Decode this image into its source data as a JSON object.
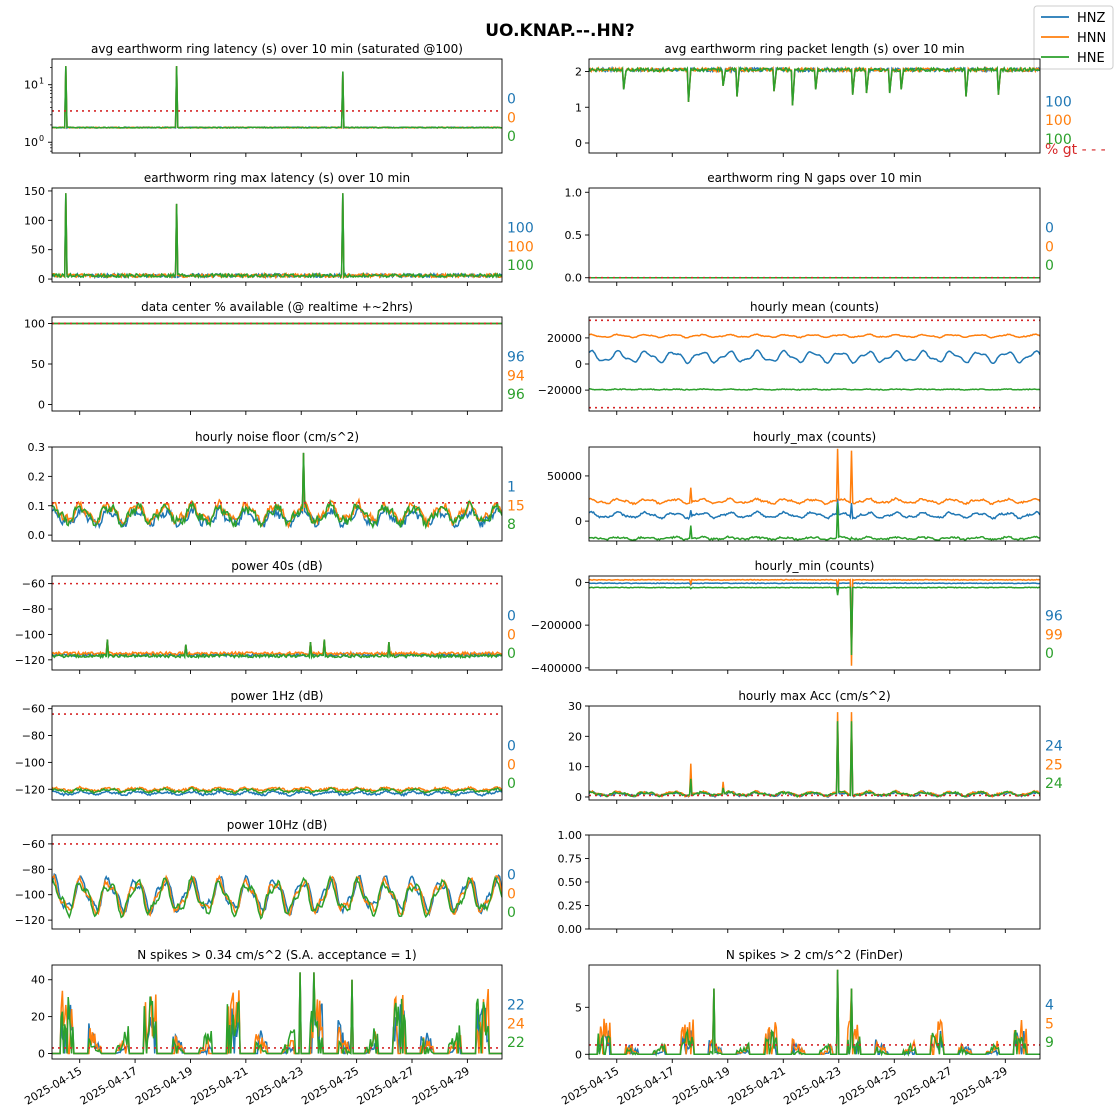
{
  "figure": {
    "title": "UO.KNAP.--.HN?",
    "colors": {
      "HNZ": "#1f77b4",
      "HNN": "#ff7f0e",
      "HNE": "#2ca02c",
      "threshold": "#d62728"
    },
    "legend": {
      "placement": "top-right",
      "entries": [
        "HNZ",
        "HNN",
        "HNE"
      ]
    },
    "x_tick_labels": [
      "2025-04-15",
      "2025-04-17",
      "2025-04-19",
      "2025-04-21",
      "2025-04-23",
      "2025-04-25",
      "2025-04-27",
      "2025-04-29"
    ],
    "x_range": [
      "2025-04-14T00:00",
      "2025-04-30T06:00"
    ]
  },
  "chart_data": [
    {
      "id": "p0",
      "type": "line",
      "title": "avg earthworm ring latency (s)   over 10 min (saturated @100)",
      "yscale": "log",
      "ylim": [
        0.65,
        28
      ],
      "yticks": [
        1,
        10
      ],
      "ytick_labels": [
        "10^0",
        "10^1"
      ],
      "threshold": 3.5,
      "baseline": {
        "HNZ": 1.8,
        "HNN": 1.8,
        "HNE": 1.8
      },
      "spikes": [
        {
          "x": "2025-04-14T12:00",
          "y": 21
        },
        {
          "x": "2025-04-18T12:00",
          "y": 21
        },
        {
          "x": "2025-04-24T12:00",
          "y": 17
        }
      ],
      "noise": 0.08,
      "percent": {
        "HNZ": "0",
        "HNN": "0",
        "HNE": "0"
      }
    },
    {
      "id": "p1",
      "type": "line",
      "title": "avg earthworm ring packet length (s)   over 10 min",
      "ylim": [
        -0.28,
        2.35
      ],
      "yticks": [
        0,
        1,
        2
      ],
      "ytick_labels": [
        "0",
        "1",
        "2"
      ],
      "baseline": {
        "HNZ": 2.05,
        "HNN": 2.05,
        "HNE": 2.05
      },
      "noise": 0.05,
      "dips": [
        {
          "x": "2025-04-15T06:00",
          "y": 1.5
        },
        {
          "x": "2025-04-17T14:00",
          "y": 1.15
        },
        {
          "x": "2025-04-18T20:00",
          "y": 1.6
        },
        {
          "x": "2025-04-19T08:00",
          "y": 1.3
        },
        {
          "x": "2025-04-20T16:00",
          "y": 1.45
        },
        {
          "x": "2025-04-21T08:00",
          "y": 1.05
        },
        {
          "x": "2025-04-22T04:00",
          "y": 1.5
        },
        {
          "x": "2025-04-23T12:00",
          "y": 1.35
        },
        {
          "x": "2025-04-24T00:00",
          "y": 1.4
        },
        {
          "x": "2025-04-24T20:00",
          "y": 1.4
        },
        {
          "x": "2025-04-25T06:00",
          "y": 1.5
        },
        {
          "x": "2025-04-27T14:00",
          "y": 1.3
        },
        {
          "x": "2025-04-28T18:00",
          "y": 1.35
        }
      ],
      "percent": {
        "HNZ": "100",
        "HNN": "100",
        "HNE": "100"
      },
      "note": "% gt - - -"
    },
    {
      "id": "p2",
      "type": "line",
      "title": "earthworm ring max latency (s)   over 10 min",
      "ylim": [
        -5,
        155
      ],
      "yticks": [
        0,
        50,
        100,
        150
      ],
      "ytick_labels": [
        "0",
        "50",
        "100",
        "150"
      ],
      "baseline": {
        "HNZ": 6,
        "HNN": 6,
        "HNE": 6
      },
      "noise": 3,
      "spikes": [
        {
          "x": "2025-04-14T12:00",
          "y": 146
        },
        {
          "x": "2025-04-18T12:00",
          "y": 128
        },
        {
          "x": "2025-04-24T12:00",
          "y": 146
        }
      ],
      "percent": {
        "HNZ": "100",
        "HNN": "100",
        "HNE": "100"
      }
    },
    {
      "id": "p3",
      "type": "line",
      "title": "earthworm ring N gaps   over 10 min",
      "ylim": [
        -0.05,
        1.05
      ],
      "yticks": [
        0,
        0.5,
        1
      ],
      "ytick_labels": [
        "0.0",
        "0.5",
        "1.0"
      ],
      "baseline": {
        "HNZ": 0,
        "HNN": 0,
        "HNE": 0
      },
      "noise": 0,
      "threshold": 0,
      "percent": {
        "HNZ": "0",
        "HNN": "0",
        "HNE": "0"
      }
    },
    {
      "id": "p4",
      "type": "line",
      "title": "data center % available (@ realtime +~2hrs)",
      "ylim": [
        -8,
        108
      ],
      "yticks": [
        0,
        50,
        100
      ],
      "ytick_labels": [
        "0",
        "50",
        "100"
      ],
      "baseline": {
        "HNZ": 100,
        "HNN": 100,
        "HNE": 100
      },
      "noise": 0,
      "threshold": 100,
      "percent": {
        "HNZ": "96",
        "HNN": "94",
        "HNE": "96"
      }
    },
    {
      "id": "p5",
      "type": "line",
      "title": "hourly mean (counts)",
      "ylim": [
        -36000,
        36000
      ],
      "yticks": [
        -20000,
        0,
        20000
      ],
      "ytick_labels": [
        "−20000",
        "0",
        "20000"
      ],
      "thresholds": [
        33500,
        -33500
      ],
      "baseline": {
        "HNZ": 5500,
        "HNN": 21500,
        "HNE": -19500
      },
      "daily_amp": {
        "HNZ": 3500,
        "HNN": 900,
        "HNE": 200
      },
      "noise": 300,
      "percent": {
        "HNZ": "",
        "HNN": "",
        "HNE": ""
      }
    },
    {
      "id": "p6",
      "type": "line",
      "title": "hourly noise floor (cm/s^2)",
      "ylim": [
        -0.02,
        0.3
      ],
      "yticks": [
        0,
        0.1,
        0.2,
        0.3
      ],
      "ytick_labels": [
        "0.0",
        "0.1",
        "0.2",
        "0.3"
      ],
      "threshold": 0.11,
      "baseline": {
        "HNZ": 0.06,
        "HNN": 0.075,
        "HNE": 0.07
      },
      "daily_amp": {
        "HNZ": 0.02,
        "HNN": 0.025,
        "HNE": 0.025
      },
      "noise": 0.012,
      "spikes": [
        {
          "x": "2025-04-23T02:00",
          "y": 0.28
        }
      ],
      "percent": {
        "HNZ": "1",
        "HNN": "15",
        "HNE": "8"
      }
    },
    {
      "id": "p7",
      "type": "line",
      "title": "hourly_max (counts)",
      "ylim": [
        -22000,
        82000
      ],
      "yticks": [
        0,
        50000
      ],
      "ytick_labels": [
        "0",
        "50000"
      ],
      "baseline": {
        "HNZ": 6500,
        "HNN": 22000,
        "HNE": -19000
      },
      "daily_amp": {
        "HNZ": 2500,
        "HNN": 2000,
        "HNE": 1200
      },
      "noise": 900,
      "spikes": [
        {
          "x": "2025-04-17T16:00",
          "y": {
            "HNZ": 12000,
            "HNN": 37000,
            "HNE": -5000
          }
        },
        {
          "x": "2025-04-22T23:00",
          "y": {
            "HNZ": 25000,
            "HNN": 80000,
            "HNE": 20000
          }
        },
        {
          "x": "2025-04-23T11:00",
          "y": {
            "HNZ": 20000,
            "HNN": 78000,
            "HNE": -18000
          }
        }
      ],
      "percent": {
        "HNZ": "",
        "HNN": "",
        "HNE": ""
      }
    },
    {
      "id": "p8",
      "type": "line",
      "title": "power 40s (dB)",
      "ylim": [
        -128,
        -54
      ],
      "yticks": [
        -120,
        -100,
        -80,
        -60
      ],
      "ytick_labels": [
        "−120",
        "−100",
        "−80",
        "−60"
      ],
      "threshold": -60,
      "baseline": {
        "HNZ": -116,
        "HNN": -115,
        "HNE": -117
      },
      "noise": 1.2,
      "spikes": [
        {
          "x": "2025-04-16T00:00",
          "y": -104
        },
        {
          "x": "2025-04-18T20:00",
          "y": -108
        },
        {
          "x": "2025-04-23T20:00",
          "y": -104
        },
        {
          "x": "2025-04-26T04:00",
          "y": -106
        },
        {
          "x": "2025-04-23T08:00",
          "y": -106
        }
      ],
      "percent": {
        "HNZ": "0",
        "HNN": "0",
        "HNE": "0"
      }
    },
    {
      "id": "p9",
      "type": "line",
      "title": "hourly_min (counts)",
      "ylim": [
        -410000,
        30000
      ],
      "yticks": [
        -400000,
        -200000,
        0
      ],
      "ytick_labels": [
        "−400000",
        "−200000",
        "0"
      ],
      "baseline": {
        "HNZ": -4000,
        "HNN": 12000,
        "HNE": -24000
      },
      "noise": 1500,
      "spikes": [
        {
          "x": "2025-04-17T16:00",
          "y": {
            "HNZ": -12000,
            "HNN": -6000,
            "HNE": -30000
          }
        },
        {
          "x": "2025-04-22T23:00",
          "y": {
            "HNZ": -30000,
            "HNN": -20000,
            "HNE": -60000
          }
        },
        {
          "x": "2025-04-23T11:00",
          "y": {
            "HNZ": -330000,
            "HNN": -390000,
            "HNE": -340000
          }
        }
      ],
      "percent": {
        "HNZ": "96",
        "HNN": "99",
        "HNE": "0"
      }
    },
    {
      "id": "p10",
      "type": "line",
      "title": "power 1Hz (dB)",
      "ylim": [
        -128,
        -58
      ],
      "yticks": [
        -120,
        -100,
        -80,
        -60
      ],
      "ytick_labels": [
        "−120",
        "−100",
        "−80",
        "−60"
      ],
      "threshold": -64,
      "baseline": {
        "HNZ": -123,
        "HNN": -120,
        "HNE": -121
      },
      "daily_amp": {
        "HNZ": 1,
        "HNN": 1,
        "HNE": 1
      },
      "noise": 0.8,
      "percent": {
        "HNZ": "0",
        "HNN": "0",
        "HNE": "0"
      }
    },
    {
      "id": "p11",
      "type": "line",
      "title": "hourly max Acc (cm/s^2)",
      "ylim": [
        -1,
        30
      ],
      "yticks": [
        0,
        10,
        20,
        30
      ],
      "ytick_labels": [
        "0",
        "10",
        "20",
        "30"
      ],
      "threshold": 0.5,
      "baseline": {
        "HNZ": 0.9,
        "HNN": 1.1,
        "HNE": 1.0
      },
      "daily_amp": {
        "HNZ": 0.5,
        "HNN": 0.6,
        "HNE": 0.5
      },
      "noise": 0.3,
      "spikes": [
        {
          "x": "2025-04-17T16:00",
          "y": {
            "HNZ": 4,
            "HNN": 11,
            "HNE": 6
          }
        },
        {
          "x": "2025-04-22T23:00",
          "y": {
            "HNZ": 25,
            "HNN": 28,
            "HNE": 25
          }
        },
        {
          "x": "2025-04-23T11:00",
          "y": {
            "HNZ": 24,
            "HNN": 28,
            "HNE": 25
          }
        },
        {
          "x": "2025-04-18T20:00",
          "y": {
            "HNZ": 3,
            "HNN": 5,
            "HNE": 3
          }
        }
      ],
      "percent": {
        "HNZ": "24",
        "HNN": "25",
        "HNE": "24"
      }
    },
    {
      "id": "p12",
      "type": "line",
      "title": "power 10Hz (dB)",
      "ylim": [
        -127,
        -53
      ],
      "yticks": [
        -120,
        -100,
        -80,
        -60
      ],
      "ytick_labels": [
        "−120",
        "−100",
        "−80",
        "−60"
      ],
      "threshold": -60,
      "baseline": {
        "HNZ": -100,
        "HNN": -101,
        "HNE": -102
      },
      "daily_amp": {
        "HNZ": 11,
        "HNN": 11,
        "HNE": 11
      },
      "noise": 1.5,
      "percent": {
        "HNZ": "0",
        "HNN": "0",
        "HNE": "0"
      }
    },
    {
      "id": "p13",
      "type": "empty",
      "title": "",
      "ylim": [
        0,
        1
      ],
      "yticks": [
        0,
        0.25,
        0.5,
        0.75,
        1
      ],
      "ytick_labels": [
        "0.00",
        "0.25",
        "0.50",
        "0.75",
        "1.00"
      ],
      "percent": {
        "HNZ": "",
        "HNN": "",
        "HNE": ""
      }
    },
    {
      "id": "p14",
      "type": "line",
      "title": "N spikes > 0.34 cm/s^2 (S.A. acceptance = 1)",
      "ylim": [
        -3,
        48
      ],
      "yticks": [
        0,
        20,
        40
      ],
      "ytick_labels": [
        "0",
        "20",
        "40"
      ],
      "threshold": 3,
      "baseline": {
        "HNZ": 0,
        "HNN": 0,
        "HNE": 0
      },
      "burst_amp": {
        "HNZ": 22,
        "HNN": 28,
        "HNE": 24
      },
      "big": [
        {
          "x": "2025-04-22T23:00",
          "y": 44
        },
        {
          "x": "2025-04-23T11:00",
          "y": 44
        },
        {
          "x": "2025-04-24T20:00",
          "y": 40
        }
      ],
      "percent": {
        "HNZ": "22",
        "HNN": "24",
        "HNE": "22"
      }
    },
    {
      "id": "p15",
      "type": "line",
      "title": "N spikes > 2 cm/s^2 (FinDer)",
      "ylim": [
        -0.5,
        9.5
      ],
      "yticks": [
        0,
        5
      ],
      "ytick_labels": [
        "0",
        "5"
      ],
      "threshold": 1,
      "baseline": {
        "HNZ": 0,
        "HNN": 0,
        "HNE": 0
      },
      "burst_amp": {
        "HNZ": 2,
        "HNN": 3,
        "HNE": 2
      },
      "big": [
        {
          "x": "2025-04-22T23:00",
          "y": 9
        },
        {
          "x": "2025-04-23T11:00",
          "y": 7
        },
        {
          "x": "2025-04-18T12:00",
          "y": 7
        }
      ],
      "percent": {
        "HNZ": "4",
        "HNN": "5",
        "HNE": "9"
      }
    }
  ]
}
